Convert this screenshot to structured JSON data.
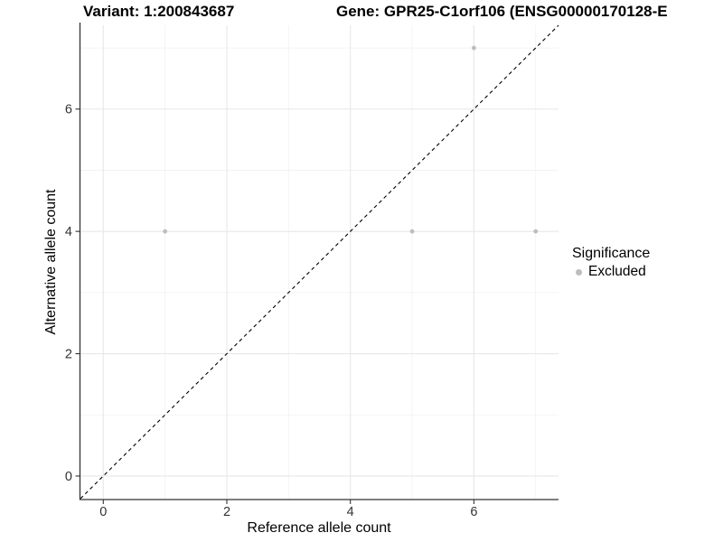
{
  "titles": {
    "variant": "Variant: 1:200843687",
    "gene": "Gene: GPR25-C1orf106 (ENSG00000170128-E"
  },
  "legend": {
    "title": "Significance",
    "items": [
      {
        "label": "Excluded",
        "color": "#bdbdbd"
      }
    ]
  },
  "chart_data": {
    "type": "scatter",
    "xlabel": "Reference allele count",
    "ylabel": "Alternative allele count",
    "xlim": [
      -0.37,
      7.37
    ],
    "ylim": [
      -0.37,
      7.37
    ],
    "x_ticks": [
      0,
      2,
      4,
      6
    ],
    "y_ticks": [
      0,
      2,
      4,
      6
    ],
    "x_minor_ticks": [
      1,
      3,
      5,
      7
    ],
    "y_minor_ticks": [
      1,
      3,
      5,
      7
    ],
    "grid": true,
    "legend_position": "right",
    "series": [
      {
        "name": "Excluded",
        "color": "#bdbdbd",
        "points": [
          [
            1,
            4
          ],
          [
            5,
            4
          ],
          [
            7,
            4
          ],
          [
            6,
            7
          ]
        ]
      }
    ],
    "identity_line": {
      "slope": 1,
      "intercept": 0,
      "style": "dashed",
      "color": "#000000"
    },
    "colors": {
      "grid_major": "#e7e7e7",
      "grid_minor": "#f1f1f1",
      "axis_line": "#333333",
      "tick_label": "#333333",
      "point": "#bdbdbd"
    }
  }
}
